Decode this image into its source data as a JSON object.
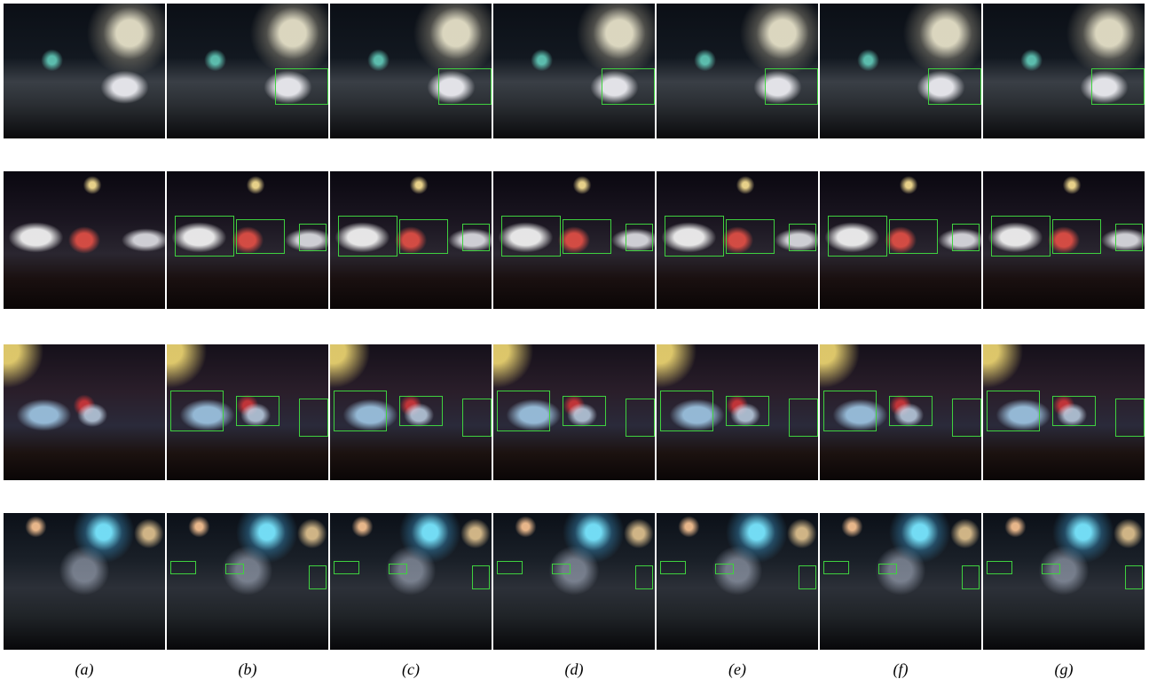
{
  "captions": [
    "(a)",
    "(b)",
    "(c)",
    "(d)",
    "(e)",
    "(f)",
    "(g)"
  ]
}
